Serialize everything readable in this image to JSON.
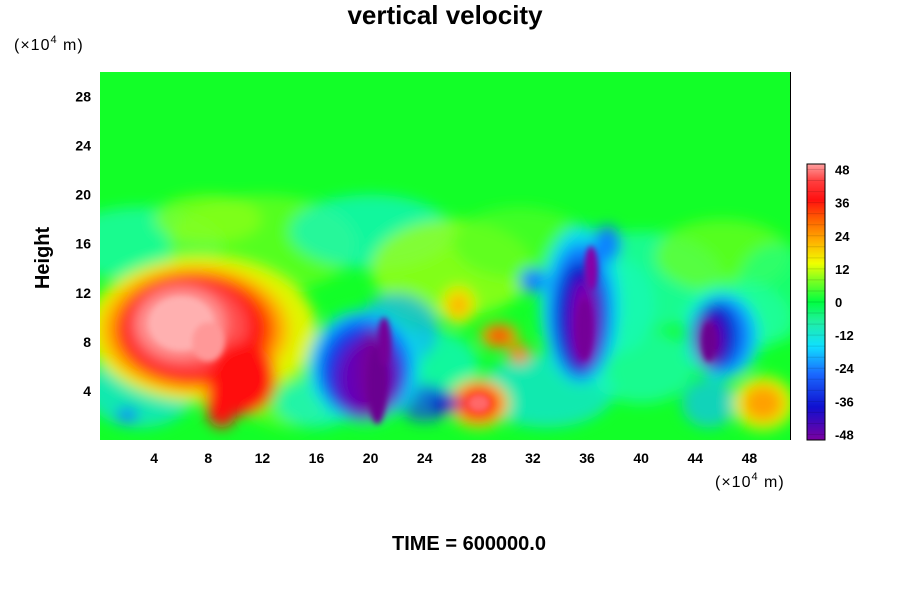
{
  "chart_data": {
    "type": "heatmap",
    "title": "vertical velocity",
    "ylabel": "Height",
    "xlabel": "",
    "x_unit": {
      "prefix": "(×10",
      "exp": "4",
      "suffix": " m)"
    },
    "y_unit": {
      "prefix": "(×10",
      "exp": "4",
      "suffix": " m)"
    },
    "xlim": [
      0,
      51
    ],
    "ylim": [
      0,
      30
    ],
    "xticks": [
      "4",
      "8",
      "12",
      "16",
      "20",
      "24",
      "28",
      "32",
      "36",
      "40",
      "44",
      "48"
    ],
    "yticks": [
      "4",
      "8",
      "12",
      "16",
      "20",
      "24",
      "28"
    ],
    "colorbar": {
      "range": [
        -50,
        50
      ],
      "ticks": [
        "48",
        "36",
        "24",
        "12",
        "0",
        "-12",
        "-24",
        "-36",
        "-48"
      ],
      "colormap": "rainbow: purple(-48) blue(-36) cyan(-18) green(0) yellow(14) orange(24) red(36) pink(48)"
    },
    "background_value": 0,
    "features": [
      {
        "label": "updraft",
        "x": 6.5,
        "y": 9,
        "peak": 48
      },
      {
        "label": "updraft",
        "x": 10,
        "y": 7,
        "peak": 40
      },
      {
        "label": "downdraft",
        "x": 19.5,
        "y": 5,
        "peak": -48
      },
      {
        "label": "downdraft",
        "x": 35.5,
        "y": 10,
        "peak": -44
      },
      {
        "label": "downdraft",
        "x": 45.5,
        "y": 8.5,
        "peak": -48
      },
      {
        "label": "updraft",
        "x": 28,
        "y": 3,
        "peak": 38
      },
      {
        "label": "updraft",
        "x": 49,
        "y": 3,
        "peak": 26
      },
      {
        "label": "updraft",
        "x": 29.5,
        "y": 8.5,
        "peak": 30
      },
      {
        "label": "updraft",
        "x": 26.5,
        "y": 11,
        "peak": 22
      }
    ]
  },
  "footer": {
    "time_label": "TIME = 600000.0"
  }
}
